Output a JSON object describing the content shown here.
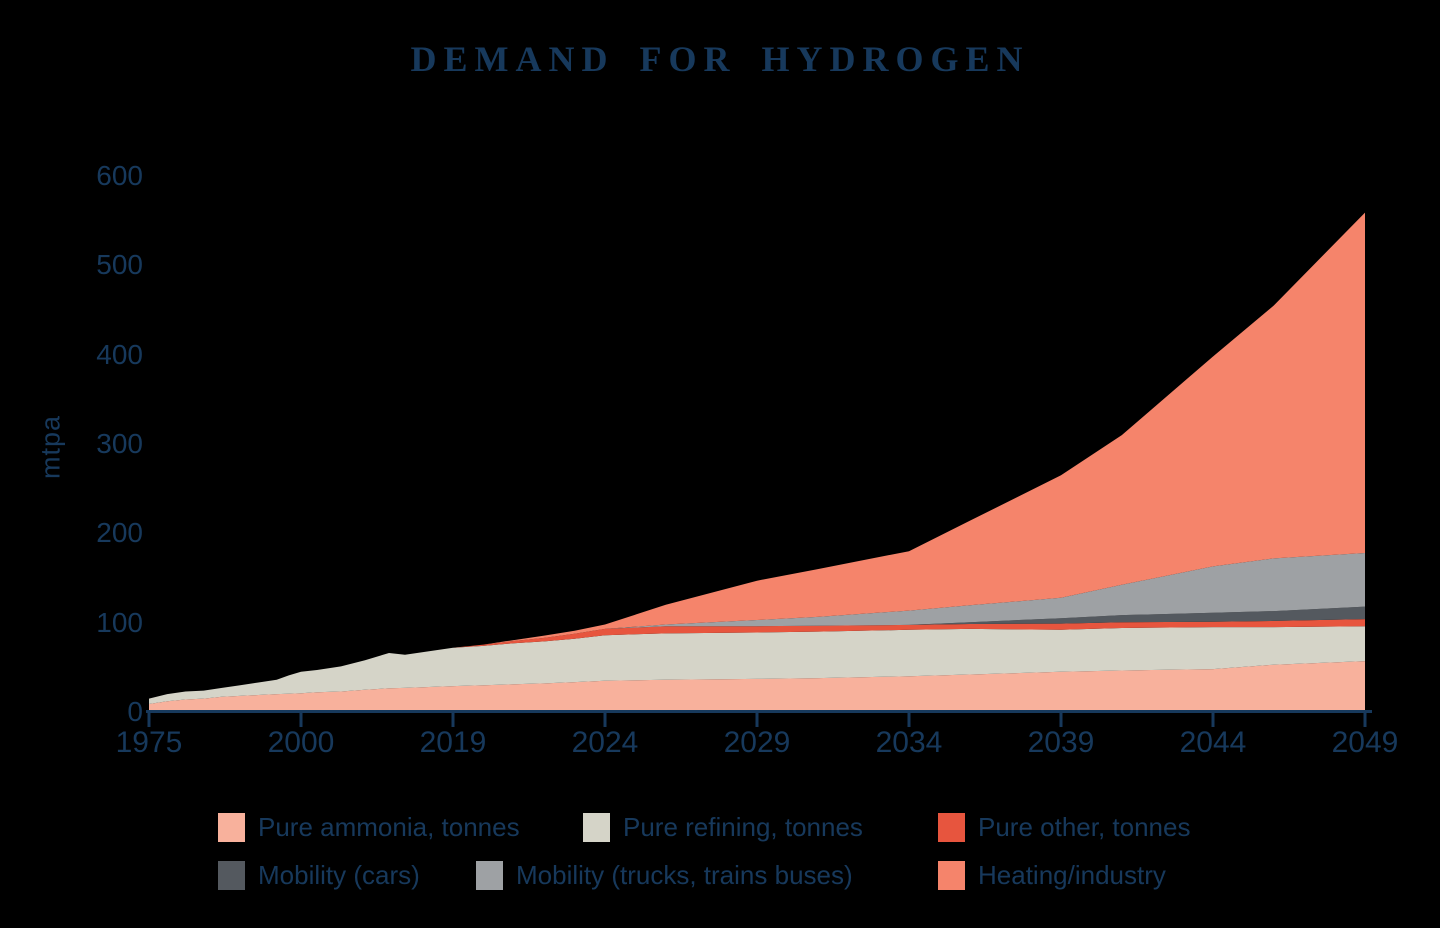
{
  "title": "DEMAND FOR HYDROGEN",
  "colors": {
    "background": "#000000",
    "text": "#17395c",
    "axis": "#17395c"
  },
  "y_axis": {
    "label": "mtpa",
    "ticks": [
      600,
      500,
      400,
      300,
      200,
      100,
      0
    ]
  },
  "x_axis": {
    "ticks": [
      "1975",
      "2000",
      "2019",
      "2024",
      "2029",
      "2034",
      "2039",
      "2044",
      "2049"
    ]
  },
  "chart_data": {
    "type": "area",
    "stacked": true,
    "title": "DEMAND FOR HYDROGEN",
    "xlabel": "",
    "ylabel": "mtpa",
    "ylim": [
      0,
      620
    ],
    "grid": false,
    "legend_position": "bottom",
    "x_tick_years": [
      1975,
      2000,
      2019,
      2024,
      2029,
      2034,
      2039,
      2044,
      2049
    ],
    "x": [
      1975,
      1978,
      1981,
      1984,
      1987,
      1990,
      1993,
      1996,
      1998,
      2000,
      2002,
      2005,
      2008,
      2011,
      2013,
      2016,
      2019,
      2020,
      2021,
      2022,
      2023,
      2024,
      2026,
      2029,
      2031,
      2034,
      2036,
      2039,
      2041,
      2044,
      2046,
      2049
    ],
    "series": [
      {
        "name": "Pure ammonia, tonnes",
        "color": "#f8b19c",
        "values": [
          9,
          12,
          14,
          15,
          17,
          18,
          19,
          20,
          20.5,
          21,
          22,
          23,
          25,
          26.5,
          27,
          28,
          29,
          30,
          31,
          32,
          33.5,
          35,
          36,
          37,
          38,
          40,
          42,
          45,
          46.5,
          48,
          53,
          57
        ]
      },
      {
        "name": "Pure refining, tonnes",
        "color": "#d5d4c8",
        "values": [
          6,
          8,
          9,
          9,
          10,
          12,
          14,
          16,
          20.5,
          24,
          25,
          28,
          33,
          39.5,
          37,
          40,
          43,
          44,
          46,
          47,
          48.5,
          51,
          52,
          52,
          52,
          52,
          51,
          47,
          47.5,
          47,
          42,
          39
        ]
      },
      {
        "name": "Pure other, tonnes",
        "color": "#e7553e",
        "values": [
          0,
          0,
          0,
          0,
          0,
          0,
          0,
          0,
          0,
          0,
          0,
          0,
          0,
          0,
          0,
          0,
          0,
          1.5,
          2.5,
          4,
          5.5,
          7,
          8,
          7,
          6.5,
          5.5,
          5.5,
          7,
          6.5,
          6,
          7,
          8
        ]
      },
      {
        "name": "Mobility (cars)",
        "color": "#54595f",
        "values": [
          0,
          0,
          0,
          0,
          0,
          0,
          0,
          0,
          0,
          0,
          0,
          0,
          0,
          0,
          0,
          0,
          0,
          0,
          0,
          0,
          0,
          0,
          0,
          0,
          0,
          0,
          2,
          6,
          8,
          10,
          11,
          14
        ]
      },
      {
        "name": "Mobility (trucks, trains buses)",
        "color": "#9ea1a4",
        "values": [
          0,
          0,
          0,
          0,
          0,
          0,
          0,
          0,
          0,
          0,
          0,
          0,
          0,
          0,
          0,
          0,
          0,
          0,
          0,
          0,
          0,
          0,
          2,
          7,
          10,
          16,
          19,
          23,
          34,
          52,
          59,
          60
        ]
      },
      {
        "name": "Heating/industry",
        "color": "#f5846b",
        "values": [
          0,
          0,
          0,
          0,
          0,
          0,
          0,
          0,
          0,
          0,
          0,
          0,
          0,
          0,
          0,
          0,
          0,
          0,
          1,
          2.5,
          3.5,
          5,
          22,
          44,
          53.5,
          66.5,
          94.5,
          137,
          167.5,
          235,
          283,
          381
        ]
      }
    ]
  }
}
